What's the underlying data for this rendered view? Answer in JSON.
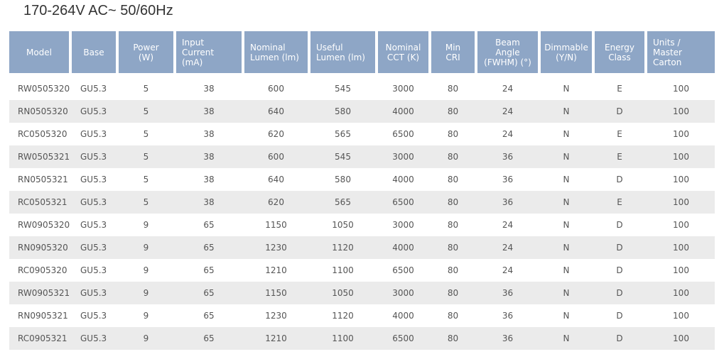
{
  "title": "170-264V AC~ 50/60Hz",
  "table": {
    "headers": [
      "Model",
      "Base",
      "Power (W)",
      "Input Current (mA)",
      "Nominal Lumen (lm)",
      "Useful Lumen (lm)",
      "Nominal CCT (K)",
      "Min CRI",
      "Beam Angle (FWHM) (°)",
      "Dimmable (Y/N)",
      "Energy Class",
      "Units / Master Carton"
    ],
    "rows": [
      [
        "RW0505320",
        "GU5.3",
        5,
        38,
        600,
        545,
        3000,
        80,
        24,
        "N",
        "E",
        100
      ],
      [
        "RN0505320",
        "GU5.3",
        5,
        38,
        640,
        580,
        4000,
        80,
        24,
        "N",
        "D",
        100
      ],
      [
        "RC0505320",
        "GU5.3",
        5,
        38,
        620,
        565,
        6500,
        80,
        24,
        "N",
        "E",
        100
      ],
      [
        "RW0505321",
        "GU5.3",
        5,
        38,
        600,
        545,
        3000,
        80,
        36,
        "N",
        "E",
        100
      ],
      [
        "RN0505321",
        "GU5.3",
        5,
        38,
        640,
        580,
        4000,
        80,
        36,
        "N",
        "D",
        100
      ],
      [
        "RC0505321",
        "GU5.3",
        5,
        38,
        620,
        565,
        6500,
        80,
        36,
        "N",
        "E",
        100
      ],
      [
        "RW0905320",
        "GU5.3",
        9,
        65,
        1150,
        1050,
        3000,
        80,
        24,
        "N",
        "D",
        100
      ],
      [
        "RN0905320",
        "GU5.3",
        9,
        65,
        1230,
        1120,
        4000,
        80,
        24,
        "N",
        "D",
        100
      ],
      [
        "RC0905320",
        "GU5.3",
        9,
        65,
        1210,
        1100,
        6500,
        80,
        24,
        "N",
        "D",
        100
      ],
      [
        "RW0905321",
        "GU5.3",
        9,
        65,
        1150,
        1050,
        3000,
        80,
        36,
        "N",
        "D",
        100
      ],
      [
        "RN0905321",
        "GU5.3",
        9,
        65,
        1230,
        1120,
        4000,
        80,
        36,
        "N",
        "D",
        100
      ],
      [
        "RC0905321",
        "GU5.3",
        9,
        65,
        1210,
        1100,
        6500,
        80,
        36,
        "N",
        "D",
        100
      ]
    ]
  }
}
